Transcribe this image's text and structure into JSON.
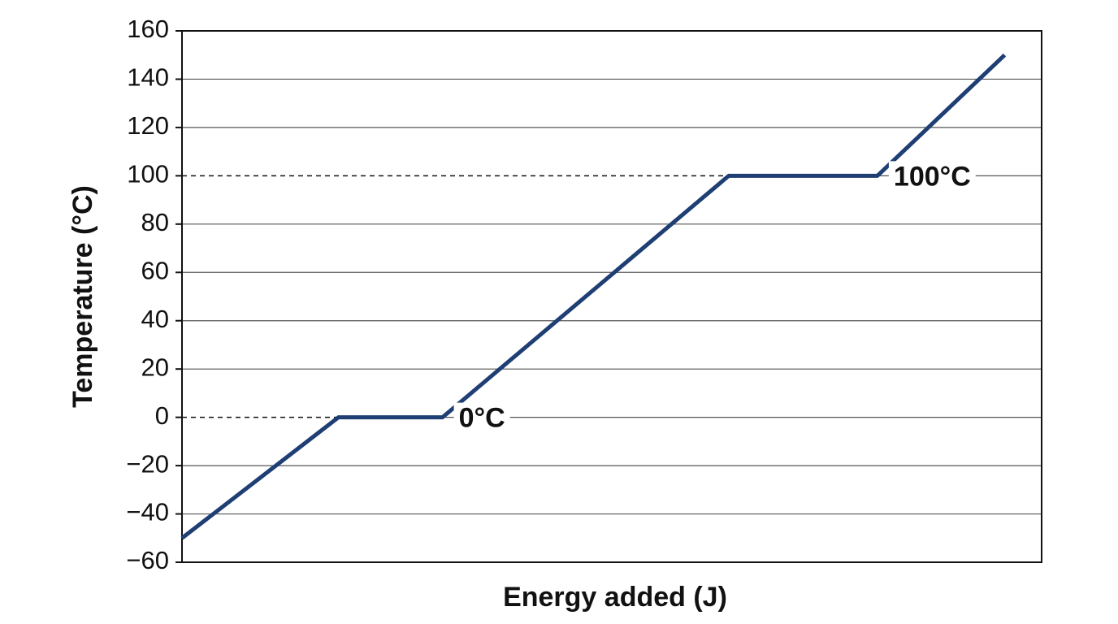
{
  "chart_data": {
    "type": "line",
    "x_label": "Energy added (J)",
    "y_label": "Temperature (°C)",
    "x": [
      0,
      18.2,
      30.3,
      63.6,
      80.9,
      95.7
    ],
    "series": [
      {
        "color": "#1f3f74",
        "values": [
          -50,
          0,
          0,
          100,
          100,
          150
        ]
      }
    ],
    "xlim": [
      0,
      100
    ],
    "ylim": [
      -60,
      160
    ],
    "yticks": [
      {
        "value": -60,
        "label": "−60"
      },
      {
        "value": -40,
        "label": "−40"
      },
      {
        "value": -20,
        "label": "−20"
      },
      0,
      20,
      40,
      60,
      80,
      100,
      120,
      140,
      160
    ],
    "grid": true,
    "annotations": [
      {
        "text": "0°C",
        "y": 0
      },
      {
        "text": "100°C",
        "y": 100
      }
    ]
  }
}
